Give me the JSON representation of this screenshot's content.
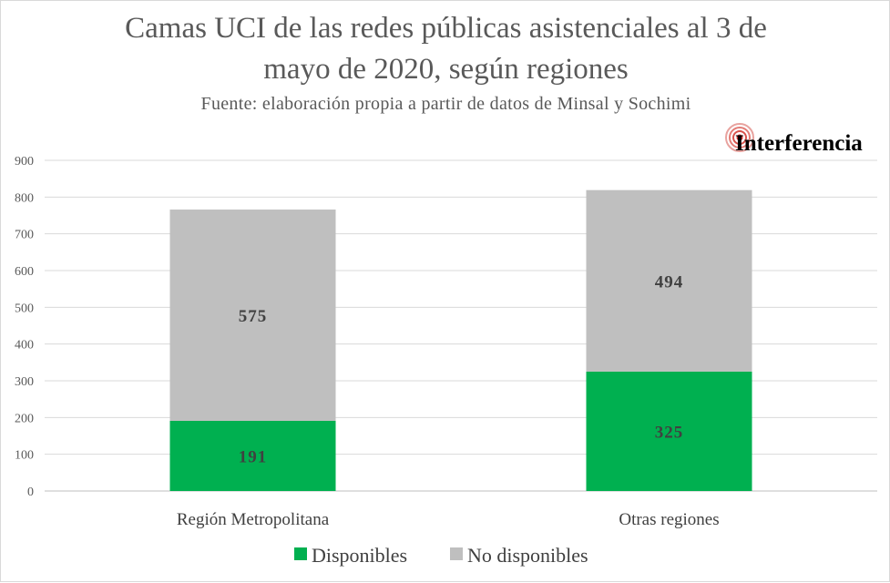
{
  "header": {
    "title_line1": "Camas UCI de las redes públicas asistenciales al 3 de",
    "title_line2": "mayo de 2020, según regiones",
    "subtitle": "Fuente: elaboración propia a partir de datos de Minsal y Sochimi",
    "logo_text": "Interferencia"
  },
  "chart_data": {
    "type": "bar",
    "stacked": true,
    "title": "Camas UCI de las redes públicas asistenciales al 3 de mayo de 2020, según regiones",
    "subtitle": "Fuente: elaboración propia a partir de datos de Minsal y Sochimi",
    "categories": [
      "Región Metropolitana",
      "Otras regiones"
    ],
    "series": [
      {
        "name": "Disponibles",
        "values": [
          191,
          325
        ],
        "color": "#00b050"
      },
      {
        "name": "No disponibles",
        "values": [
          575,
          494
        ],
        "color": "#bfbfbf"
      }
    ],
    "ylim": [
      0,
      900
    ],
    "yticks": [
      0,
      100,
      200,
      300,
      400,
      500,
      600,
      700,
      800,
      900
    ],
    "grid": true,
    "legend_position": "bottom",
    "data_labels": true
  }
}
